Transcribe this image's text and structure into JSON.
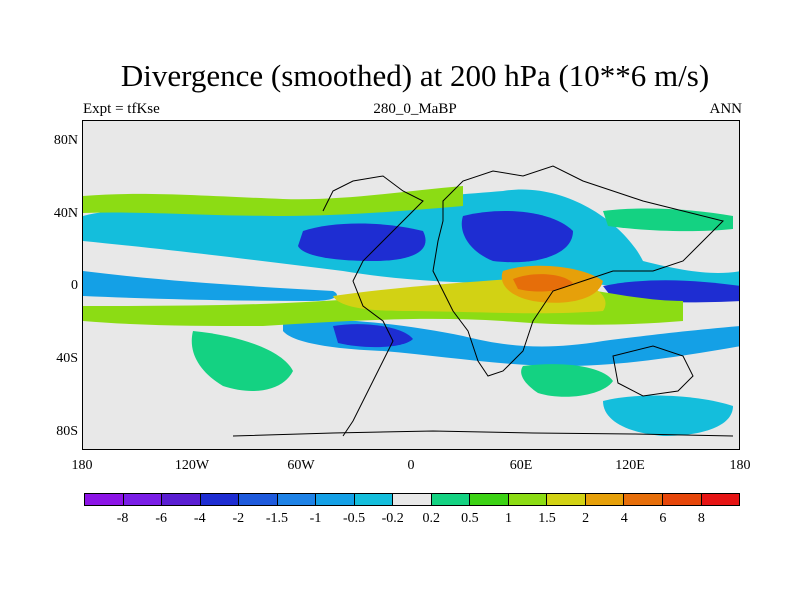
{
  "chart_data": {
    "type": "heatmap",
    "title": "Divergence (smoothed) at 200 hPa (10**6 m/s)",
    "subtitle_left": "Expt = tfKse",
    "subtitle_center": "280_0_MaBP",
    "subtitle_right": "ANN",
    "x_ticks": [
      "180",
      "120W",
      "60W",
      "0",
      "60E",
      "120E",
      "180"
    ],
    "y_ticks": [
      "80N",
      "40N",
      "0",
      "40S",
      "80S"
    ],
    "xlim": [
      -180,
      180
    ],
    "ylim": [
      -90,
      90
    ],
    "colorbar": {
      "labels": [
        "-8",
        "-6",
        "-4",
        "-2",
        "-1.5",
        "-1",
        "-0.5",
        "-0.2",
        "0.2",
        "0.5",
        "1",
        "1.5",
        "2",
        "4",
        "6",
        "8"
      ],
      "colors": [
        "#8c14e6",
        "#7a1ee6",
        "#5a1ed2",
        "#1e2dd2",
        "#1e5adc",
        "#1e82e6",
        "#14a0e6",
        "#14bedc",
        "#e8e8e8",
        "#14d282",
        "#3cd214",
        "#8cdc14",
        "#d2d214",
        "#e6a00a",
        "#e66e0a",
        "#e6460a",
        "#e61414"
      ]
    }
  }
}
